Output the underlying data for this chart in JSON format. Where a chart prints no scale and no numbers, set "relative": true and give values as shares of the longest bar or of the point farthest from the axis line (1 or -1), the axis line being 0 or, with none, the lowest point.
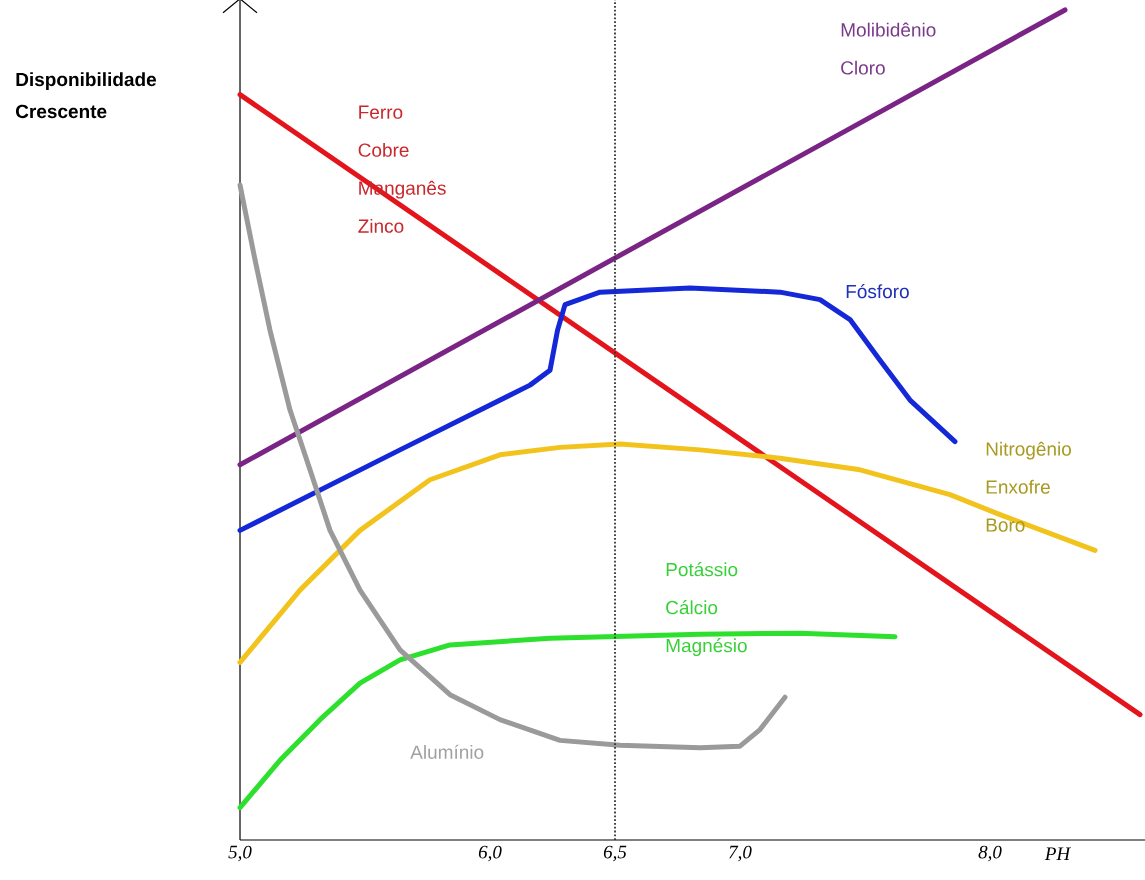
{
  "chart_data": {
    "type": "line",
    "relative": true,
    "xlabel": "PH",
    "ylabel": "Disponibilidade Crescente",
    "xlim": [
      5,
      8.62
    ],
    "xticks": [
      {
        "value": 5,
        "label": "5,0"
      },
      {
        "value": 6,
        "label": "6,0"
      },
      {
        "value": 6.5,
        "label": "6,5"
      },
      {
        "value": 7,
        "label": "7,0"
      },
      {
        "value": 8,
        "label": "8,0"
      }
    ],
    "legend": false,
    "grid": false,
    "ref_lines": [
      {
        "axis": "x",
        "value": 6.5,
        "color": "#333333",
        "line_style": "dotted"
      }
    ],
    "series": [
      {
        "name": "Ferro Cobre Manganês Zinco",
        "color": "#e3141c",
        "x": [
          5.0,
          8.6
        ],
        "values": [
          0.898,
          0.151
        ]
      },
      {
        "name": "Molibidênio Cloro",
        "color": "#7a2585",
        "x": [
          5.0,
          8.3
        ],
        "values": [
          0.452,
          1.0
        ]
      },
      {
        "name": "Fósforo",
        "color": "#1428d8",
        "x": [
          5.0,
          5.64,
          6.16,
          6.24,
          6.27,
          6.3,
          6.44,
          6.8,
          7.16,
          7.32,
          7.44,
          7.56,
          7.68,
          7.86
        ],
        "values": [
          0.373,
          0.47,
          0.548,
          0.566,
          0.614,
          0.645,
          0.66,
          0.665,
          0.66,
          0.651,
          0.627,
          0.578,
          0.53,
          0.48
        ]
      },
      {
        "name": "Nitrogênio Enxofre Boro",
        "color": "#f2c31c",
        "x": [
          5.0,
          5.24,
          5.48,
          5.76,
          6.04,
          6.28,
          6.52,
          6.84,
          7.16,
          7.48,
          7.84,
          8.04,
          8.42
        ],
        "values": [
          0.214,
          0.301,
          0.373,
          0.434,
          0.464,
          0.473,
          0.477,
          0.47,
          0.46,
          0.446,
          0.416,
          0.392,
          0.349
        ]
      },
      {
        "name": "Potássio Cálcio Magnésio",
        "color": "#2ee02e",
        "x": [
          5.0,
          5.16,
          5.32,
          5.48,
          5.64,
          5.84,
          6.24,
          6.84,
          7.24,
          7.62
        ],
        "values": [
          0.039,
          0.096,
          0.145,
          0.189,
          0.217,
          0.235,
          0.243,
          0.248,
          0.249,
          0.245
        ]
      },
      {
        "name": "Alumínio",
        "color": "#9a9a9a",
        "x": [
          5.0,
          5.06,
          5.12,
          5.2,
          5.28,
          5.36,
          5.48,
          5.64,
          5.84,
          6.04,
          6.28,
          6.52,
          6.84,
          7.0,
          7.08,
          7.18
        ],
        "values": [
          0.789,
          0.699,
          0.614,
          0.518,
          0.446,
          0.373,
          0.301,
          0.229,
          0.175,
          0.145,
          0.12,
          0.114,
          0.111,
          0.113,
          0.133,
          0.172
        ]
      }
    ]
  }
}
